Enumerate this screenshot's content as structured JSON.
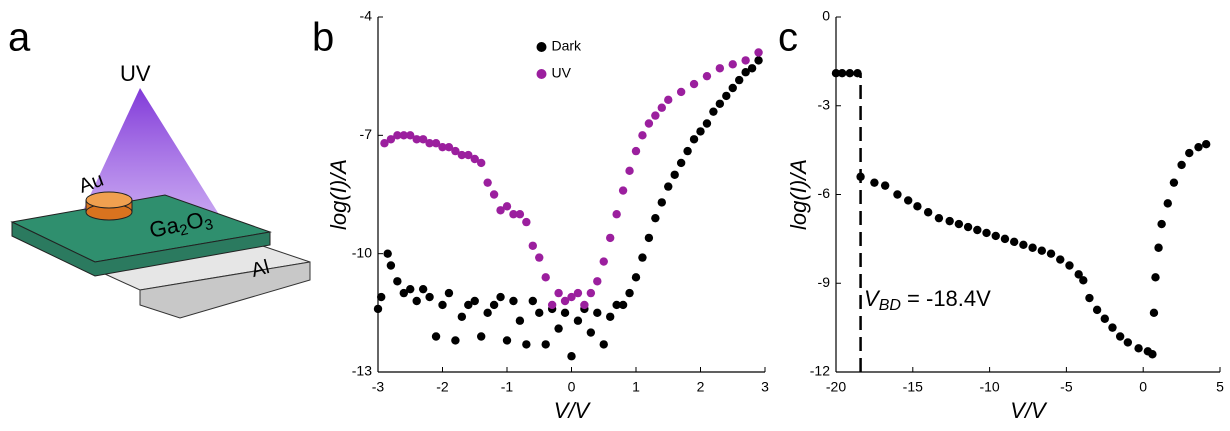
{
  "panel_labels": [
    "a",
    "b",
    "c"
  ],
  "diagram": {
    "uv_label": "UV",
    "electrode_label": "Au",
    "layer_label_parts": [
      "Ga",
      "2",
      "O",
      "3"
    ],
    "substrate_label": "Al"
  },
  "chart_data": [
    {
      "type": "scatter",
      "xlabel": "V/V",
      "ylabel": "log(I)/A",
      "xlim": [
        -3,
        3
      ],
      "xticks": [
        -3,
        -2,
        -1,
        0,
        1,
        2,
        3
      ],
      "ylim": [
        -13,
        -4
      ],
      "yticks": [
        -13,
        -10,
        -7,
        -4
      ],
      "legend": "top",
      "series": [
        {
          "name": "Dark",
          "color": "#000000",
          "x": [
            -3,
            -2.95,
            -2.85,
            -2.8,
            -2.7,
            -2.6,
            -2.5,
            -2.4,
            -2.3,
            -2.2,
            -2.1,
            -2.0,
            -1.9,
            -1.8,
            -1.7,
            -1.6,
            -1.5,
            -1.4,
            -1.3,
            -1.2,
            -1.1,
            -1.0,
            -0.9,
            -0.8,
            -0.7,
            -0.6,
            -0.5,
            -0.4,
            -0.3,
            -0.2,
            -0.1,
            0,
            0.1,
            0.2,
            0.3,
            0.4,
            0.5,
            0.6,
            0.7,
            0.8,
            0.9,
            1.0,
            1.1,
            1.2,
            1.3,
            1.4,
            1.5,
            1.6,
            1.7,
            1.8,
            1.9,
            2.0,
            2.1,
            2.2,
            2.3,
            2.4,
            2.5,
            2.6,
            2.7,
            2.8,
            2.9
          ],
          "values": [
            -11.4,
            -11.1,
            -10,
            -10.3,
            -10.7,
            -11,
            -10.9,
            -11.2,
            -10.9,
            -11.1,
            -12.1,
            -11.3,
            -11,
            -12.2,
            -11.6,
            -11.3,
            -11.2,
            -12.1,
            -11.5,
            -11.3,
            -11.1,
            -12.2,
            -11.2,
            -11.7,
            -12.3,
            -11.2,
            -11.5,
            -12.3,
            -11.4,
            -11.9,
            -11.5,
            -12.6,
            -11.7,
            -11.4,
            -12,
            -11.5,
            -12.3,
            -11.6,
            -11.3,
            -11.3,
            -11,
            -10.6,
            -10.1,
            -9.6,
            -9.1,
            -8.7,
            -8.3,
            -8,
            -7.7,
            -7.4,
            -7.1,
            -6.9,
            -6.7,
            -6.4,
            -6.2,
            -6,
            -5.8,
            -5.6,
            -5.4,
            -5.3,
            -5.1
          ]
        },
        {
          "name": "UV",
          "color": "#9b1f9e",
          "x": [
            -2.9,
            -2.8,
            -2.7,
            -2.6,
            -2.5,
            -2.4,
            -2.3,
            -2.2,
            -2.1,
            -2.0,
            -1.9,
            -1.8,
            -1.7,
            -1.6,
            -1.5,
            -1.4,
            -1.3,
            -1.2,
            -1.1,
            -1.0,
            -0.9,
            -0.8,
            -0.7,
            -0.6,
            -0.5,
            -0.4,
            -0.3,
            -0.2,
            -0.1,
            0,
            0.1,
            0.2,
            0.3,
            0.4,
            0.5,
            0.6,
            0.7,
            0.8,
            0.9,
            1.0,
            1.1,
            1.2,
            1.3,
            1.4,
            1.5,
            1.7,
            1.9,
            2.1,
            2.3,
            2.5,
            2.7,
            2.9
          ],
          "values": [
            -7.2,
            -7.1,
            -7.0,
            -7.0,
            -7.0,
            -7.1,
            -7.1,
            -7.2,
            -7.2,
            -7.3,
            -7.3,
            -7.4,
            -7.5,
            -7.5,
            -7.6,
            -7.7,
            -8.2,
            -8.5,
            -8.9,
            -8.8,
            -9.0,
            -9.0,
            -9.2,
            -9.8,
            -10.1,
            -10.6,
            -11.3,
            -11.0,
            -11.2,
            -11.1,
            -11.0,
            -11.3,
            -11.0,
            -10.7,
            -10.2,
            -9.6,
            -9.0,
            -8.4,
            -7.9,
            -7.4,
            -7.0,
            -6.7,
            -6.5,
            -6.3,
            -6.1,
            -5.9,
            -5.7,
            -5.5,
            -5.3,
            -5.2,
            -5.1,
            -4.9
          ]
        }
      ]
    },
    {
      "type": "scatter",
      "xlabel": "V/V",
      "ylabel": "log(I)/A",
      "xlim": [
        -20,
        5
      ],
      "xticks": [
        -20,
        -15,
        -10,
        -5,
        0,
        5
      ],
      "ylim": [
        -12,
        0
      ],
      "yticks": [
        -12,
        -9,
        -6,
        -3,
        0
      ],
      "breakdown_voltage": -18.4,
      "annotation": {
        "text": "V",
        "subscript": "BD",
        "suffix": " = -18.4V"
      },
      "series": [
        {
          "color": "#000000",
          "x": [
            -20,
            -19.6,
            -19.1,
            -18.6,
            -18.4,
            -17.5,
            -16.8,
            -16,
            -15.3,
            -14.7,
            -14,
            -13.3,
            -12.6,
            -12,
            -11.4,
            -10.8,
            -10.2,
            -9.6,
            -9,
            -8.4,
            -7.8,
            -7.2,
            -6.6,
            -6,
            -5.4,
            -4.8,
            -4.2,
            -3.9,
            -3.5,
            -3,
            -2.5,
            -2,
            -1.5,
            -1,
            -0.3,
            0.3,
            0.6,
            0.7,
            0.8,
            1.0,
            1.2,
            1.6,
            2,
            2.5,
            3.0,
            3.6,
            4.1
          ],
          "values": [
            -1.9,
            -1.9,
            -1.9,
            -1.9,
            -5.4,
            -5.6,
            -5.7,
            -6,
            -6.2,
            -6.4,
            -6.6,
            -6.8,
            -6.9,
            -7,
            -7.1,
            -7.2,
            -7.3,
            -7.4,
            -7.5,
            -7.6,
            -7.7,
            -7.8,
            -7.9,
            -8,
            -8.2,
            -8.4,
            -8.7,
            -8.9,
            -9.5,
            -9.9,
            -10.2,
            -10.5,
            -10.8,
            -11.0,
            -11.2,
            -11.3,
            -11.4,
            -10,
            -8.8,
            -7.8,
            -7,
            -6.3,
            -5.6,
            -5.0,
            -4.6,
            -4.4,
            -4.3
          ]
        }
      ]
    }
  ]
}
